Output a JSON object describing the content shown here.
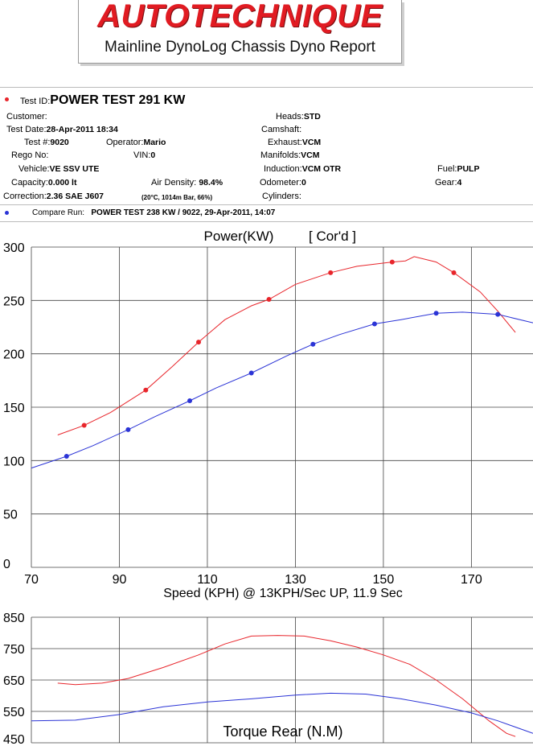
{
  "header": {
    "brand": "AUTOTECHNIQUE",
    "subtitle": "Mainline DynoLog Chassis Dyno Report"
  },
  "test": {
    "id_label": "Test ID:",
    "id_value": "POWER TEST 291 KW",
    "customer_label": "Customer:",
    "customer_value": "",
    "date_label": "Test Date:",
    "date_value": "28-Apr-2011 18:34",
    "num_label": "Test #:",
    "num_value": "9020",
    "operator_label": "Operator:",
    "operator_value": "Mario",
    "rego_label": "Rego No:",
    "rego_value": "",
    "vin_label": "VIN:",
    "vin_value": "0",
    "vehicle_label": "Vehicle:",
    "vehicle_value": "VE SSV UTE",
    "capacity_label": "Capacity:",
    "capacity_value": "0.000 lt",
    "density_label": "Air Density:",
    "density_value": "98.4%",
    "correction_label": "Correction:",
    "correction_value": "2.36 SAE J607",
    "conditions": "(20°C, 1014m Bar, 66%)",
    "heads_label": "Heads:",
    "heads_value": "STD",
    "camshaft_label": "Camshaft:",
    "camshaft_value": "",
    "exhaust_label": "Exhaust:",
    "exhaust_value": "VCM",
    "manifolds_label": "Manifolds:",
    "manifolds_value": "VCM",
    "induction_label": "Induction:",
    "induction_value": "VCM OTR",
    "odometer_label": "Odometer:",
    "odometer_value": "0",
    "cylinders_label": "Cylinders:",
    "cylinders_value": "",
    "fuel_label": "Fuel:",
    "fuel_value": "PULP",
    "gear_label": "Gear:",
    "gear_value": "4",
    "compare_label": "Compare Run:",
    "compare_value": "POWER TEST  238 KW / 9022,   29-Apr-2011,    14:07"
  },
  "colors": {
    "run": "#e8252b",
    "compare": "#2b34d6",
    "brand": "#e11b22"
  },
  "chart_data": [
    {
      "type": "line",
      "title": "Power(KW)",
      "title_note": "[ Cor'd ]",
      "xlabel": "Speed (KPH) @ 13KPH/Sec UP, 11.9 Sec",
      "ylabel": "",
      "xlim": [
        70,
        184
      ],
      "ylim": [
        0,
        300
      ],
      "xticks": [
        70,
        90,
        110,
        130,
        150,
        170
      ],
      "yticks": [
        0,
        50,
        100,
        150,
        200,
        250,
        300
      ],
      "grid": true,
      "series": [
        {
          "color": "#e8252b",
          "x": [
            76,
            82,
            88,
            96,
            102,
            108,
            114,
            120,
            124,
            130,
            138,
            144,
            152,
            155,
            157,
            162,
            166,
            172,
            176,
            180
          ],
          "y": [
            124,
            133,
            145,
            166,
            188,
            211,
            232,
            245,
            251,
            265,
            276,
            282,
            286,
            287,
            291,
            286,
            276,
            258,
            240,
            220
          ]
        },
        {
          "color": "#2b34d6",
          "x": [
            70,
            78,
            84,
            92,
            98,
            106,
            112,
            120,
            128,
            134,
            140,
            148,
            154,
            162,
            168,
            176,
            184
          ],
          "y": [
            93,
            104,
            114,
            129,
            141,
            156,
            168,
            182,
            198,
            209,
            218,
            228,
            232,
            238,
            239,
            237,
            229
          ]
        }
      ],
      "markers": [
        {
          "series": 0,
          "x": [
            82,
            96,
            108,
            124,
            138,
            152,
            166
          ]
        },
        {
          "series": 1,
          "x": [
            78,
            92,
            106,
            120,
            134,
            148,
            162,
            176
          ]
        }
      ]
    },
    {
      "type": "line",
      "title": "Torque Rear (N.M)",
      "xlim": [
        70,
        184
      ],
      "ylim": [
        450,
        850
      ],
      "yticks": [
        450,
        550,
        650,
        750,
        850
      ],
      "grid": true,
      "series": [
        {
          "color": "#e8252b",
          "x": [
            76,
            80,
            86,
            92,
            100,
            108,
            114,
            120,
            126,
            132,
            138,
            144,
            150,
            156,
            162,
            168,
            174,
            178,
            180
          ],
          "y": [
            640,
            635,
            640,
            655,
            690,
            730,
            765,
            790,
            792,
            790,
            775,
            755,
            730,
            700,
            650,
            590,
            520,
            480,
            470
          ]
        },
        {
          "color": "#2b34d6",
          "x": [
            70,
            80,
            90,
            100,
            110,
            120,
            130,
            138,
            146,
            154,
            162,
            170,
            176,
            182,
            184
          ],
          "y": [
            520,
            522,
            540,
            565,
            580,
            590,
            602,
            608,
            605,
            590,
            570,
            545,
            520,
            490,
            480
          ]
        }
      ]
    }
  ]
}
